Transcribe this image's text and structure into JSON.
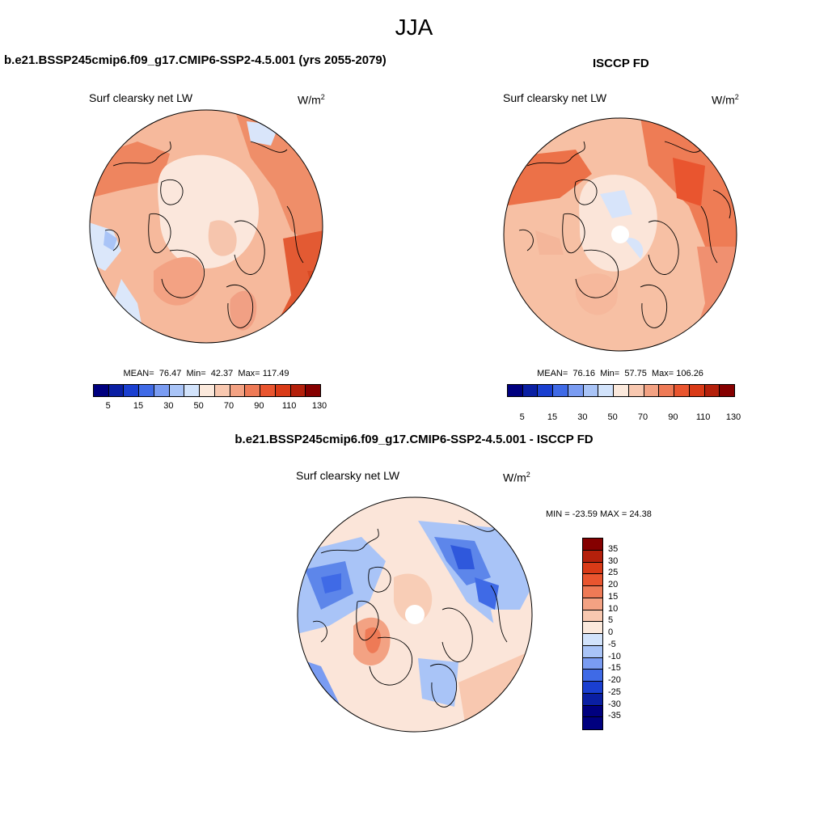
{
  "season": "JJA",
  "panels": [
    {
      "title": "b.e21.BSSP245cmip6.f09_g17.CMIP6-SSP2-4.5.001 (yrs 2055-2079)",
      "variable": "Surf clearsky net LW",
      "units_base": "W/m",
      "units_exp": "2",
      "mean_label": "MEAN=",
      "mean": "76.47",
      "min_label": "Min=",
      "min": "42.37",
      "max_label": "Max=",
      "max": "117.49"
    },
    {
      "title": "ISCCP FD",
      "variable": "Surf clearsky net LW",
      "units_base": "W/m",
      "units_exp": "2",
      "mean_label": "MEAN=",
      "mean": "76.16",
      "min_label": "Min=",
      "min": "57.75",
      "max_label": "Max=",
      "max": "106.26"
    },
    {
      "title": "b.e21.BSSP245cmip6.f09_g17.CMIP6-SSP2-4.5.001 - ISCCP FD",
      "variable": "Surf clearsky net LW",
      "units_base": "W/m",
      "units_exp": "2",
      "minmax_text": "MIN = -23.59 MAX =  24.38"
    }
  ],
  "colorbar_abs": {
    "colors": [
      "#00007f",
      "#0a1fa3",
      "#1a3fd0",
      "#3f6ae6",
      "#7a9cf2",
      "#a9c4f7",
      "#d2e3fb",
      "#fbe9dc",
      "#f8c8b0",
      "#f3a283",
      "#ee7a56",
      "#e9552f",
      "#d93a17",
      "#b4200b",
      "#850000"
    ],
    "tick_labels": [
      "5",
      "15",
      "30",
      "50",
      "70",
      "90",
      "110",
      "130"
    ]
  },
  "colorbar_diff": {
    "colors": [
      "#850000",
      "#b4200b",
      "#d93a17",
      "#e9552f",
      "#ee7a56",
      "#f3a283",
      "#f8c8b0",
      "#fbe9dc",
      "#d2e3fb",
      "#a9c4f7",
      "#7a9cf2",
      "#3f6ae6",
      "#1a3fd0",
      "#0a1fa3",
      "#00007f"
    ],
    "tick_labels": [
      "35",
      "30",
      "25",
      "20",
      "15",
      "10",
      "5",
      "0",
      "-5",
      "-10",
      "-15",
      "-20",
      "-25",
      "-30",
      "-35"
    ]
  },
  "colors": {
    "land_outline": "#000000",
    "missing": "#ffffff"
  }
}
